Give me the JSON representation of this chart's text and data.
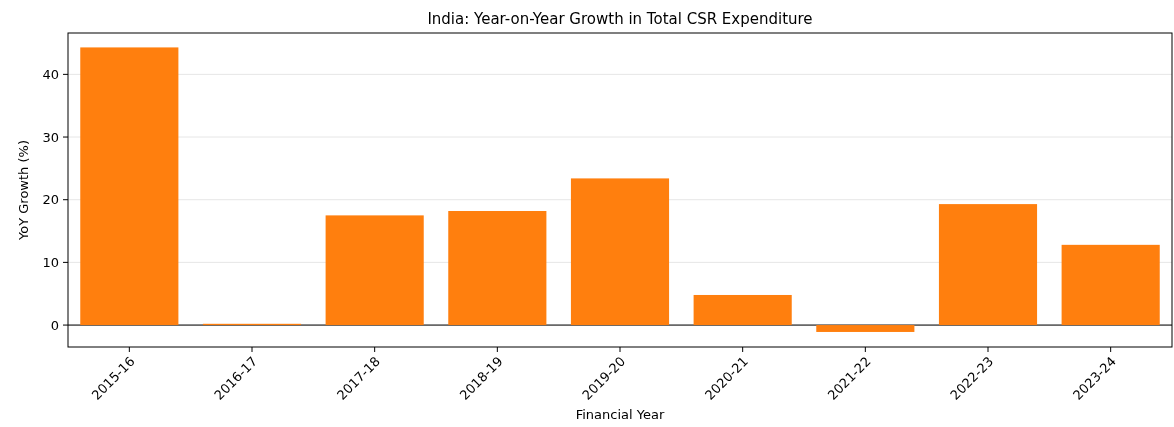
{
  "chart_data": {
    "type": "bar",
    "title": "India: Year-on-Year Growth in Total CSR Expenditure",
    "xlabel": "Financial Year",
    "ylabel": "YoY Growth (%)",
    "categories": [
      "2015-16",
      "2016-17",
      "2017-18",
      "2018-19",
      "2019-20",
      "2020-21",
      "2021-22",
      "2022-23",
      "2023-24"
    ],
    "values": [
      44.3,
      0.2,
      17.5,
      18.2,
      23.4,
      4.8,
      -1.1,
      19.3,
      12.8
    ],
    "color": "#ff7f0e",
    "ylim": [
      -3.5,
      46.6
    ],
    "yticks": [
      0,
      10,
      20,
      30,
      40
    ],
    "grid": "y",
    "ref_lines": [
      {
        "axis": "y",
        "value": 0,
        "color": "#000000"
      }
    ]
  }
}
